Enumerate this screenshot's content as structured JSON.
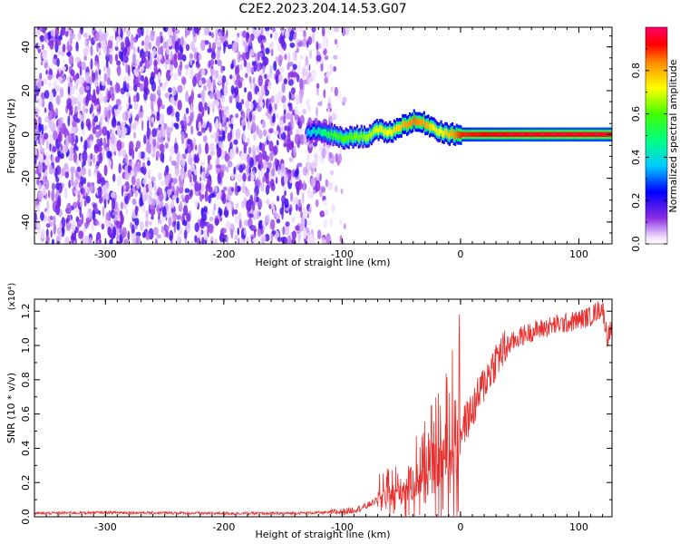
{
  "title": "C2E2.2023.204.14.53.G07",
  "chart_data": [
    {
      "type": "heatmap",
      "xlabel": "Height of straight line (km)",
      "ylabel": "Frequency (Hz)",
      "xlim": [
        -360,
        128
      ],
      "ylim": [
        -50,
        49
      ],
      "x_ticks": [
        -300,
        -200,
        -100,
        0,
        100
      ],
      "y_ticks": [
        -40,
        -20,
        0,
        20,
        40
      ],
      "noise_region_x": [
        -360,
        -95
      ],
      "ridge": {
        "x": [
          -130,
          -120,
          -110,
          -100,
          -90,
          -80,
          -70,
          -60,
          -50,
          -40,
          -30,
          -20,
          -10,
          0,
          20,
          50,
          80,
          110,
          128
        ],
        "freq": [
          1,
          1,
          0,
          -2,
          -1,
          -1,
          2,
          1,
          4,
          6,
          5,
          2,
          0,
          0,
          0,
          0,
          0,
          0,
          0
        ],
        "amplitude": [
          0.35,
          0.45,
          0.55,
          0.6,
          0.62,
          0.65,
          0.7,
          0.72,
          0.78,
          0.85,
          0.8,
          0.7,
          0.78,
          0.9,
          0.92,
          0.95,
          0.95,
          0.95,
          0.95
        ]
      },
      "colorbar": {
        "label": "Normalized spectral amplitude",
        "ticks": [
          "0.0",
          "0.2",
          "0.4",
          "0.6",
          "0.8"
        ],
        "range": [
          0,
          1
        ]
      }
    },
    {
      "type": "line",
      "xlabel": "Height of straight line (km)",
      "ylabel": "SNR (10 * v/v)",
      "y_scale_note": "(x10⁴)",
      "xlim": [
        -360,
        128
      ],
      "ylim": [
        0,
        1.27
      ],
      "x_ticks": [
        -300,
        -200,
        -100,
        0,
        100
      ],
      "y_ticks": [
        "0.0",
        "0.2",
        "0.4",
        "0.6",
        "0.8",
        "1.0",
        "1.2"
      ],
      "color": "#e8302f",
      "series": [
        {
          "x": [
            -360,
            -300,
            -200,
            -150,
            -110,
            -100,
            -90,
            -80,
            -70,
            -60,
            -50,
            -40,
            -30,
            -20,
            -10,
            0,
            10,
            20,
            30,
            40,
            50,
            60,
            70,
            80,
            90,
            100,
            110,
            115,
            120,
            124,
            128
          ],
          "y": [
            0.02,
            0.025,
            0.02,
            0.02,
            0.025,
            0.03,
            0.04,
            0.06,
            0.1,
            0.12,
            0.15,
            0.2,
            0.25,
            0.3,
            0.38,
            0.5,
            0.62,
            0.78,
            0.92,
            1.0,
            1.05,
            1.08,
            1.1,
            1.12,
            1.13,
            1.15,
            1.17,
            1.2,
            1.22,
            1.05,
            1.1
          ]
        }
      ]
    }
  ]
}
